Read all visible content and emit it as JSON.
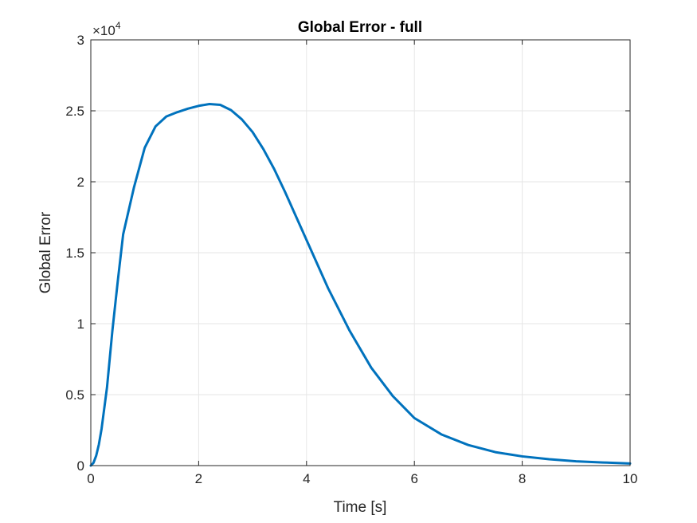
{
  "chart_data": {
    "type": "line",
    "title": "Global Error - full",
    "xlabel": "Time [s]",
    "ylabel": "Global Error",
    "xlim": [
      0,
      10
    ],
    "ylim": [
      0,
      30000
    ],
    "xticks": [
      0,
      2,
      4,
      6,
      8,
      10
    ],
    "yticks": [
      0,
      5000,
      10000,
      15000,
      20000,
      25000,
      30000
    ],
    "xtick_labels": [
      "0",
      "2",
      "4",
      "6",
      "8",
      "10"
    ],
    "ytick_labels": [
      "0",
      "0.5",
      "1",
      "1.5",
      "2",
      "2.5",
      "3"
    ],
    "y_exponent_base": "×10",
    "y_exponent_power": "4",
    "grid": true,
    "colors": {
      "line": "#0072BD",
      "grid": "#e6e6e6",
      "axis": "#262626"
    },
    "series": [
      {
        "name": "Global Error",
        "x": [
          0,
          0.05,
          0.1,
          0.15,
          0.2,
          0.3,
          0.4,
          0.5,
          0.6,
          0.8,
          1.0,
          1.2,
          1.4,
          1.6,
          1.8,
          2.0,
          2.2,
          2.4,
          2.6,
          2.8,
          3.0,
          3.2,
          3.4,
          3.6,
          3.8,
          4.0,
          4.4,
          4.8,
          5.2,
          5.6,
          6.0,
          6.5,
          7.0,
          7.5,
          8.0,
          8.5,
          9.0,
          9.5,
          10.0
        ],
        "y": [
          0,
          200,
          700,
          1500,
          2600,
          5500,
          9500,
          13000,
          16300,
          19600,
          22400,
          23900,
          24600,
          24900,
          25150,
          25350,
          25480,
          25420,
          25050,
          24400,
          23500,
          22300,
          20900,
          19300,
          17600,
          15900,
          12500,
          9500,
          6900,
          4900,
          3350,
          2200,
          1450,
          950,
          650,
          450,
          300,
          220,
          150
        ]
      }
    ]
  }
}
